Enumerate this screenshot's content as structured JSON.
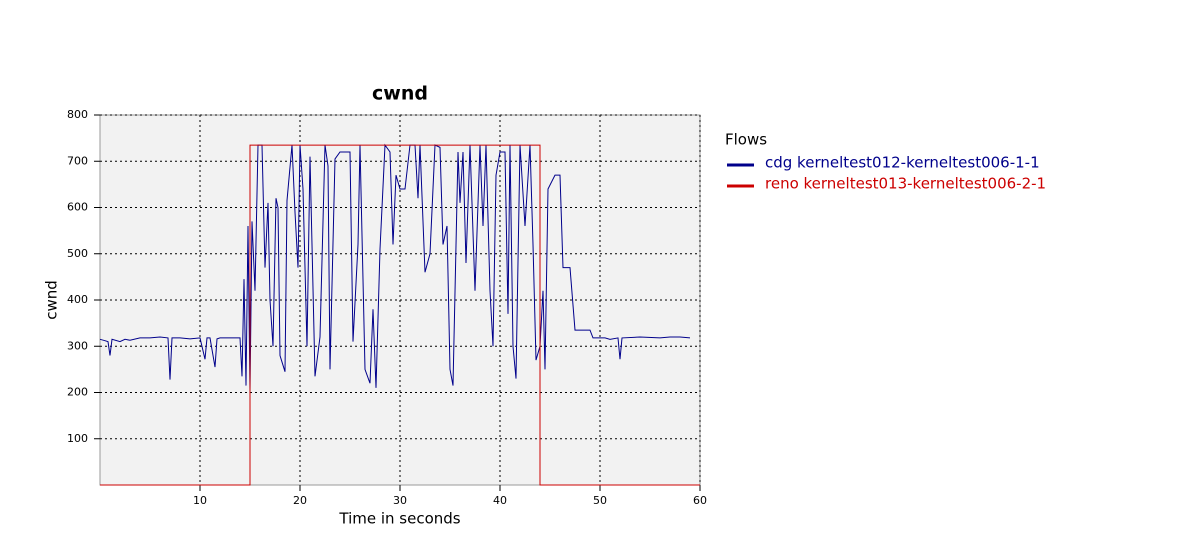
{
  "chart_data": {
    "type": "line",
    "title": "cwnd",
    "xlabel": "Time in seconds",
    "ylabel": "cwnd",
    "legend_title": "Flows",
    "legend": "right",
    "grid": true,
    "xlim": [
      0,
      60
    ],
    "xticks": [
      10,
      20,
      30,
      40,
      50,
      60
    ],
    "ylim": [
      0,
      800
    ],
    "yticks": [
      100,
      200,
      300,
      400,
      500,
      600,
      700,
      800
    ],
    "series": [
      {
        "name": "cdg kerneltest012-kerneltest006-1-1",
        "color": "#00008b",
        "x": [
          0,
          0.5,
          0.8,
          1,
          1.2,
          2,
          2.5,
          3,
          4,
          5,
          6,
          6.8,
          7,
          7.2,
          8,
          9,
          10,
          10.5,
          10.7,
          11,
          11.5,
          11.7,
          12,
          13,
          14,
          14.2,
          14.4,
          14.6,
          14.8,
          15,
          15.2,
          15.5,
          15.8,
          16.2,
          16.5,
          16.8,
          17,
          17.3,
          17.6,
          17.8,
          18,
          18.5,
          18.7,
          19.2,
          19.5,
          19.8,
          20,
          20.3,
          20.7,
          21,
          21.5,
          22,
          22.5,
          22.8,
          23,
          23.5,
          24,
          24.5,
          25,
          25.3,
          25.8,
          26,
          26.5,
          27,
          27.3,
          27.6,
          28,
          28.5,
          29,
          29.3,
          29.6,
          30,
          30.5,
          31,
          31.5,
          31.8,
          32,
          32.5,
          33,
          33.5,
          34,
          34.3,
          34.7,
          35,
          35.3,
          35.8,
          36,
          36.3,
          36.6,
          37,
          37.5,
          38,
          38.3,
          38.6,
          39,
          39.3,
          39.6,
          40,
          40.5,
          40.8,
          41,
          41.3,
          41.6,
          42,
          42.5,
          43,
          43.3,
          43.6,
          44,
          44.3,
          44.5,
          44.8,
          45.5,
          46,
          46.3,
          47,
          47.5,
          49,
          49.3,
          50.5,
          51,
          51.8,
          52,
          52.2,
          54,
          56,
          57,
          58,
          59
        ],
        "values": [
          315,
          312,
          310,
          280,
          315,
          310,
          315,
          313,
          318,
          318,
          320,
          318,
          228,
          318,
          318,
          316,
          318,
          272,
          318,
          318,
          255,
          316,
          318,
          318,
          318,
          235,
          445,
          215,
          560,
          200,
          570,
          420,
          735,
          735,
          470,
          610,
          400,
          300,
          620,
          600,
          280,
          245,
          615,
          735,
          590,
          470,
          735,
          640,
          300,
          710,
          235,
          320,
          735,
          690,
          250,
          705,
          720,
          720,
          720,
          310,
          520,
          735,
          250,
          220,
          380,
          210,
          510,
          735,
          720,
          520,
          670,
          640,
          640,
          735,
          735,
          620,
          735,
          460,
          500,
          735,
          730,
          520,
          560,
          250,
          215,
          720,
          610,
          720,
          480,
          735,
          420,
          735,
          560,
          735,
          420,
          300,
          670,
          720,
          720,
          370,
          735,
          300,
          230,
          735,
          560,
          735,
          520,
          270,
          300,
          420,
          250,
          640,
          670,
          670,
          470,
          470,
          335,
          335,
          318,
          318,
          315,
          318,
          272,
          318,
          320,
          318,
          320,
          320,
          318
        ]
      },
      {
        "name": "reno kerneltest013-kerneltest006-2-1",
        "color": "#cc0000",
        "x": [
          0,
          15,
          15,
          44,
          44,
          60
        ],
        "values": [
          0,
          0,
          735,
          735,
          0,
          0
        ]
      }
    ]
  }
}
